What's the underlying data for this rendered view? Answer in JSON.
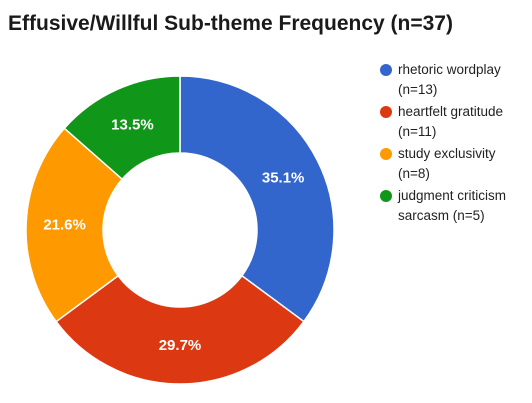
{
  "chart_data": {
    "type": "pie",
    "donut": true,
    "title": "Effusive/Willful Sub-theme Frequency (n=37)",
    "slices": [
      {
        "name": "rhetoric wordplay",
        "count_label": "(n=13)",
        "value": 13,
        "percent_label": "35.1%",
        "color": "#3366cc"
      },
      {
        "name": "heartfelt gratitude",
        "count_label": "(n=11)",
        "value": 11,
        "percent_label": "29.7%",
        "color": "#dc3912"
      },
      {
        "name": "study exclusivity",
        "count_label": "(n=8)",
        "value": 8,
        "percent_label": "21.6%",
        "color": "#ff9900"
      },
      {
        "name": "judgment criticism sarcasm",
        "name_lines": [
          "judgment criticism",
          "sarcasm (n=5)"
        ],
        "count_label": "(n=5)",
        "value": 5,
        "percent_label": "13.5%",
        "color": "#109618"
      }
    ],
    "legend_position": "right"
  }
}
